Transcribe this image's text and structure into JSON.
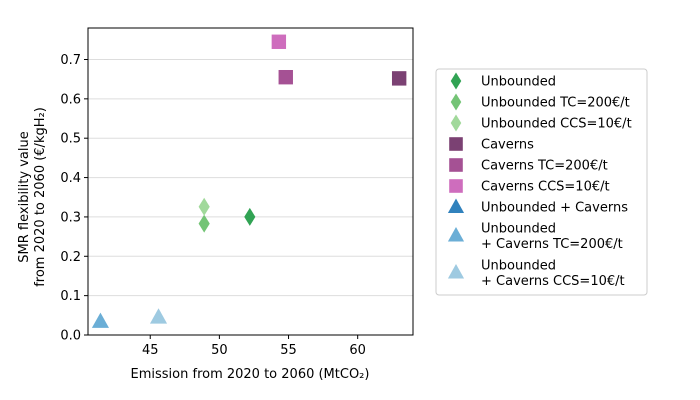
{
  "chart_data": {
    "type": "scatter",
    "xlabel": "Emission from 2020 to 2060 (MtCO₂)",
    "ylabel_line1": "SMR flexibility value",
    "ylabel_line2": "from 2020 to 2060 (€/kgH₂)",
    "xlim": [
      40.5,
      64.0
    ],
    "ylim": [
      0.0,
      0.78
    ],
    "xticks": [
      45,
      50,
      55,
      60
    ],
    "yticks": [
      0.0,
      0.1,
      0.2,
      0.3,
      0.4,
      0.5,
      0.6,
      0.7
    ],
    "grid": "horizontal",
    "legend_position": "right",
    "series": [
      {
        "name": "Unbounded",
        "name_lines": [
          "Unbounded"
        ],
        "marker": "diamond",
        "color": "#31a354",
        "points": [
          [
            52.2,
            0.3
          ]
        ]
      },
      {
        "name": "Unbounded TC=200€/t",
        "name_lines": [
          "Unbounded TC=200€/t"
        ],
        "marker": "diamond",
        "color": "#74c476",
        "points": [
          [
            48.9,
            0.283
          ]
        ]
      },
      {
        "name": "Unbounded CCS=10€/t",
        "name_lines": [
          "Unbounded CCS=10€/t"
        ],
        "marker": "diamond",
        "color": "#a1d99b",
        "points": [
          [
            48.9,
            0.326
          ]
        ]
      },
      {
        "name": "Caverns",
        "name_lines": [
          "Caverns"
        ],
        "marker": "square",
        "color": "#7b4173",
        "points": [
          [
            63.0,
            0.652
          ]
        ]
      },
      {
        "name": "Caverns TC=200€/t",
        "name_lines": [
          "Caverns TC=200€/t"
        ],
        "marker": "square",
        "color": "#a55194",
        "points": [
          [
            54.8,
            0.655
          ]
        ]
      },
      {
        "name": "Caverns CCS=10€/t",
        "name_lines": [
          "Caverns CCS=10€/t"
        ],
        "marker": "square",
        "color": "#ce6dbd",
        "points": [
          [
            54.3,
            0.745
          ]
        ]
      },
      {
        "name": "Unbounded + Caverns",
        "name_lines": [
          "Unbounded + Caverns"
        ],
        "marker": "triangle",
        "color": "#3182bd",
        "points": []
      },
      {
        "name": "Unbounded + Caverns TC=200€/t",
        "name_lines": [
          "Unbounded",
          "+ Caverns TC=200€/t"
        ],
        "marker": "triangle",
        "color": "#6baed6",
        "points": [
          [
            41.4,
            0.034
          ]
        ]
      },
      {
        "name": "Unbounded + Caverns CCS=10€/t",
        "name_lines": [
          "Unbounded",
          "+ Caverns CCS=10€/t"
        ],
        "marker": "triangle",
        "color": "#9ecae1",
        "points": [
          [
            45.6,
            0.045
          ]
        ]
      }
    ]
  }
}
